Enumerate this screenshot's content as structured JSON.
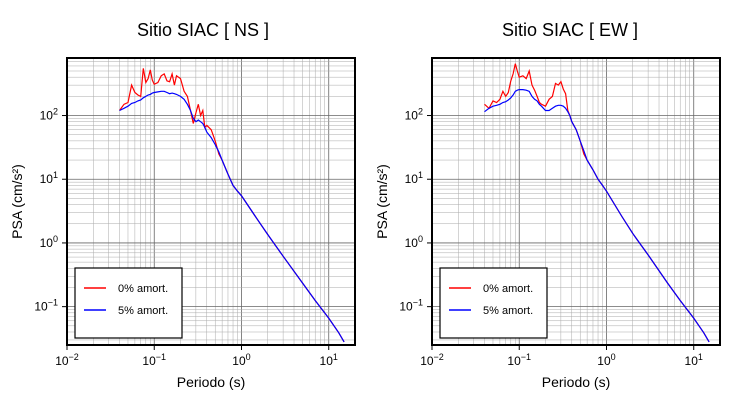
{
  "chart_data": [
    {
      "type": "line",
      "title": "Sitio SIAC [ NS ]",
      "xlabel": "Periodo (s)",
      "ylabel": "PSA (cm/s²)",
      "xscale": "log",
      "yscale": "log",
      "xlim": [
        0.01,
        20
      ],
      "ylim": [
        0.025,
        800
      ],
      "grid": true,
      "legend_position": "bottom-left",
      "x_ticks": [
        {
          "value": 0.01,
          "base": "10",
          "exp": "−2"
        },
        {
          "value": 0.1,
          "base": "10",
          "exp": "−1"
        },
        {
          "value": 1,
          "base": "10",
          "exp": "0"
        },
        {
          "value": 10,
          "base": "10",
          "exp": "1"
        }
      ],
      "y_ticks": [
        {
          "value": 0.1,
          "base": "10",
          "exp": "−1"
        },
        {
          "value": 1,
          "base": "10",
          "exp": "0"
        },
        {
          "value": 10,
          "base": "10",
          "exp": "1"
        },
        {
          "value": 100,
          "base": "10",
          "exp": "2"
        }
      ],
      "series": [
        {
          "name": "0% amort.",
          "color": "#ff0000",
          "x": [
            0.04,
            0.045,
            0.05,
            0.055,
            0.06,
            0.065,
            0.07,
            0.075,
            0.08,
            0.085,
            0.09,
            0.095,
            0.1,
            0.11,
            0.12,
            0.13,
            0.14,
            0.15,
            0.16,
            0.17,
            0.18,
            0.2,
            0.22,
            0.24,
            0.26,
            0.28,
            0.3,
            0.32,
            0.34,
            0.36,
            0.38,
            0.4,
            0.45,
            0.5,
            0.55,
            0.6,
            0.7,
            0.8,
            0.9,
            1,
            1.5,
            2,
            3,
            5,
            7,
            10,
            13,
            15
          ],
          "y": [
            120,
            150,
            160,
            300,
            230,
            210,
            200,
            550,
            330,
            380,
            520,
            360,
            310,
            330,
            420,
            450,
            350,
            340,
            450,
            300,
            420,
            380,
            240,
            200,
            120,
            75,
            110,
            150,
            100,
            120,
            65,
            70,
            60,
            40,
            25,
            20,
            12,
            8,
            6.5,
            5.5,
            2.4,
            1.35,
            0.62,
            0.235,
            0.125,
            0.066,
            0.039,
            0.028
          ]
        },
        {
          "name": "5% amort.",
          "color": "#0000ff",
          "x": [
            0.04,
            0.045,
            0.05,
            0.055,
            0.06,
            0.065,
            0.07,
            0.075,
            0.08,
            0.085,
            0.09,
            0.095,
            0.1,
            0.11,
            0.12,
            0.13,
            0.14,
            0.15,
            0.16,
            0.17,
            0.18,
            0.2,
            0.22,
            0.24,
            0.26,
            0.28,
            0.3,
            0.32,
            0.34,
            0.36,
            0.38,
            0.4,
            0.45,
            0.5,
            0.55,
            0.6,
            0.7,
            0.8,
            0.9,
            1,
            1.5,
            2,
            3,
            5,
            7,
            10,
            13,
            15
          ],
          "y": [
            120,
            130,
            140,
            155,
            160,
            170,
            175,
            190,
            200,
            210,
            215,
            225,
            230,
            235,
            240,
            240,
            230,
            220,
            225,
            220,
            215,
            200,
            180,
            150,
            120,
            90,
            80,
            85,
            80,
            75,
            65,
            55,
            45,
            35,
            27,
            20,
            12,
            8,
            6.5,
            5.5,
            2.4,
            1.35,
            0.62,
            0.235,
            0.125,
            0.066,
            0.039,
            0.028
          ]
        }
      ]
    },
    {
      "type": "line",
      "title": "Sitio SIAC [ EW ]",
      "xlabel": "Periodo (s)",
      "ylabel": "PSA (cm/s²)",
      "xscale": "log",
      "yscale": "log",
      "xlim": [
        0.01,
        20
      ],
      "ylim": [
        0.025,
        800
      ],
      "grid": true,
      "legend_position": "bottom-left",
      "x_ticks": [
        {
          "value": 0.01,
          "base": "10",
          "exp": "−2"
        },
        {
          "value": 0.1,
          "base": "10",
          "exp": "−1"
        },
        {
          "value": 1,
          "base": "10",
          "exp": "0"
        },
        {
          "value": 10,
          "base": "10",
          "exp": "1"
        }
      ],
      "y_ticks": [
        {
          "value": 0.1,
          "base": "10",
          "exp": "−1"
        },
        {
          "value": 1,
          "base": "10",
          "exp": "0"
        },
        {
          "value": 10,
          "base": "10",
          "exp": "1"
        },
        {
          "value": 100,
          "base": "10",
          "exp": "2"
        }
      ],
      "series": [
        {
          "name": "0% amort.",
          "color": "#ff0000",
          "x": [
            0.04,
            0.045,
            0.05,
            0.055,
            0.06,
            0.065,
            0.07,
            0.075,
            0.08,
            0.085,
            0.09,
            0.095,
            0.1,
            0.11,
            0.12,
            0.13,
            0.14,
            0.15,
            0.16,
            0.17,
            0.18,
            0.2,
            0.22,
            0.24,
            0.26,
            0.28,
            0.3,
            0.32,
            0.34,
            0.36,
            0.38,
            0.4,
            0.45,
            0.5,
            0.55,
            0.6,
            0.7,
            0.8,
            0.9,
            1,
            1.5,
            2,
            3,
            5,
            7,
            10,
            13,
            15
          ],
          "y": [
            150,
            130,
            170,
            160,
            180,
            240,
            200,
            230,
            350,
            450,
            650,
            500,
            400,
            420,
            380,
            500,
            300,
            250,
            200,
            160,
            150,
            140,
            180,
            200,
            320,
            300,
            340,
            260,
            220,
            120,
            100,
            80,
            60,
            40,
            25,
            20,
            14,
            10,
            8,
            6.5,
            2.6,
            1.4,
            0.65,
            0.235,
            0.125,
            0.066,
            0.039,
            0.028
          ]
        },
        {
          "name": "5% amort.",
          "color": "#0000ff",
          "x": [
            0.04,
            0.045,
            0.05,
            0.055,
            0.06,
            0.065,
            0.07,
            0.075,
            0.08,
            0.085,
            0.09,
            0.095,
            0.1,
            0.11,
            0.12,
            0.13,
            0.14,
            0.15,
            0.16,
            0.17,
            0.18,
            0.2,
            0.22,
            0.24,
            0.26,
            0.28,
            0.3,
            0.32,
            0.34,
            0.36,
            0.38,
            0.4,
            0.45,
            0.5,
            0.55,
            0.6,
            0.7,
            0.8,
            0.9,
            1,
            1.5,
            2,
            3,
            5,
            7,
            10,
            13,
            15
          ],
          "y": [
            115,
            130,
            140,
            145,
            150,
            160,
            165,
            175,
            190,
            210,
            240,
            250,
            255,
            255,
            250,
            240,
            200,
            180,
            170,
            150,
            140,
            120,
            120,
            130,
            140,
            145,
            145,
            140,
            130,
            115,
            100,
            80,
            60,
            40,
            28,
            20,
            14,
            10,
            8,
            6.5,
            2.6,
            1.4,
            0.65,
            0.235,
            0.125,
            0.066,
            0.039,
            0.028
          ]
        }
      ]
    }
  ]
}
